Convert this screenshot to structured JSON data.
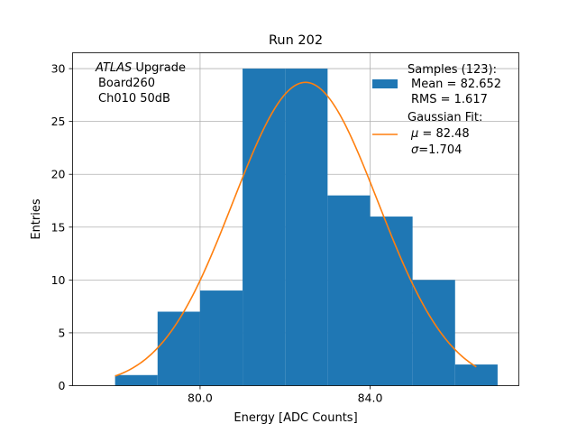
{
  "chart_data": {
    "type": "bar",
    "title": "Run 202",
    "xlabel": "Energy [ADC Counts]",
    "ylabel": "Entries",
    "xlim": [
      77.0,
      87.5
    ],
    "ylim": [
      0,
      31.5
    ],
    "xticks": [
      80.0,
      84.0
    ],
    "xtick_labels": [
      "80.0",
      "84.0"
    ],
    "yticks": [
      0,
      5,
      10,
      15,
      20,
      25,
      30
    ],
    "ytick_labels": [
      "0",
      "5",
      "10",
      "15",
      "20",
      "25",
      "30"
    ],
    "grid": true,
    "histogram": {
      "name": "Samples (123):",
      "color": "#1f77b4",
      "bin_edges": [
        78.0,
        79.0,
        80.0,
        81.0,
        82.0,
        83.0,
        84.0,
        85.0,
        86.0,
        87.0
      ],
      "counts": [
        1,
        7,
        9,
        30,
        30,
        18,
        16,
        10,
        2
      ]
    },
    "fit": {
      "name": "Gaussian Fit:",
      "color": "#ff7f0e",
      "mu": 82.48,
      "sigma": 1.704,
      "amplitude": 28.7,
      "x_start": 78.0,
      "x_end": 86.5
    },
    "annotation": {
      "italic_part": "ATLAS",
      "first_line_rest": " Upgrade",
      "line2": "Board260",
      "line3": "Ch010 50dB"
    },
    "legend": {
      "position": "top-right",
      "samples_title": "Samples (123):",
      "samples_mean": "Mean = 82.652",
      "samples_rms": "RMS = 1.617",
      "fit_title": "Gaussian Fit:",
      "fit_mu_symbol": "μ",
      "fit_mu_rest": " = 82.48",
      "fit_sigma_symbol": "σ",
      "fit_sigma_rest": "=1.704"
    }
  }
}
